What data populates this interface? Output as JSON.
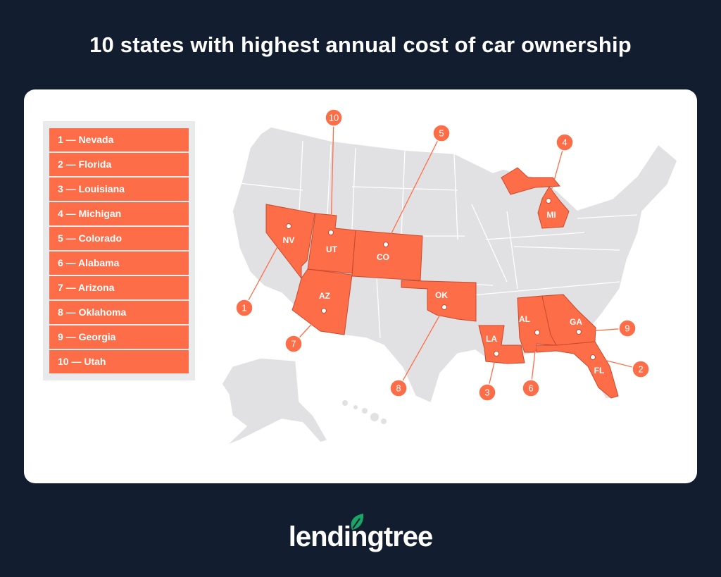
{
  "title": "10 states with highest annual cost of car ownership",
  "colors": {
    "background": "#121e2f",
    "highlight": "#fd6d48",
    "base_state": "#e1e1e4",
    "card": "#ffffff",
    "logo_leaf": "#1aa567"
  },
  "legend": {
    "items": [
      {
        "label": "1 — Nevada"
      },
      {
        "label": "2 — Florida"
      },
      {
        "label": "3 — Louisiana"
      },
      {
        "label": "4 — Michigan"
      },
      {
        "label": "5 — Colorado"
      },
      {
        "label": "6 — Alabama"
      },
      {
        "label": "7 — Arizona"
      },
      {
        "label": "8 — Oklahoma"
      },
      {
        "label": "9 — Georgia"
      },
      {
        "label": "10 — Utah"
      }
    ]
  },
  "map": {
    "states": [
      {
        "rank": "1",
        "abbr": "NV",
        "name": "Nevada"
      },
      {
        "rank": "2",
        "abbr": "FL",
        "name": "Florida"
      },
      {
        "rank": "3",
        "abbr": "LA",
        "name": "Louisiana"
      },
      {
        "rank": "4",
        "abbr": "MI",
        "name": "Michigan"
      },
      {
        "rank": "5",
        "abbr": "CO",
        "name": "Colorado"
      },
      {
        "rank": "6",
        "abbr": "AL",
        "name": "Alabama"
      },
      {
        "rank": "7",
        "abbr": "AZ",
        "name": "Arizona"
      },
      {
        "rank": "8",
        "abbr": "OK",
        "name": "Oklahoma"
      },
      {
        "rank": "9",
        "abbr": "GA",
        "name": "Georgia"
      },
      {
        "rank": "10",
        "abbr": "UT",
        "name": "Utah"
      }
    ]
  },
  "logo": {
    "text": "lendingtree",
    "icon": "leaf-icon"
  }
}
